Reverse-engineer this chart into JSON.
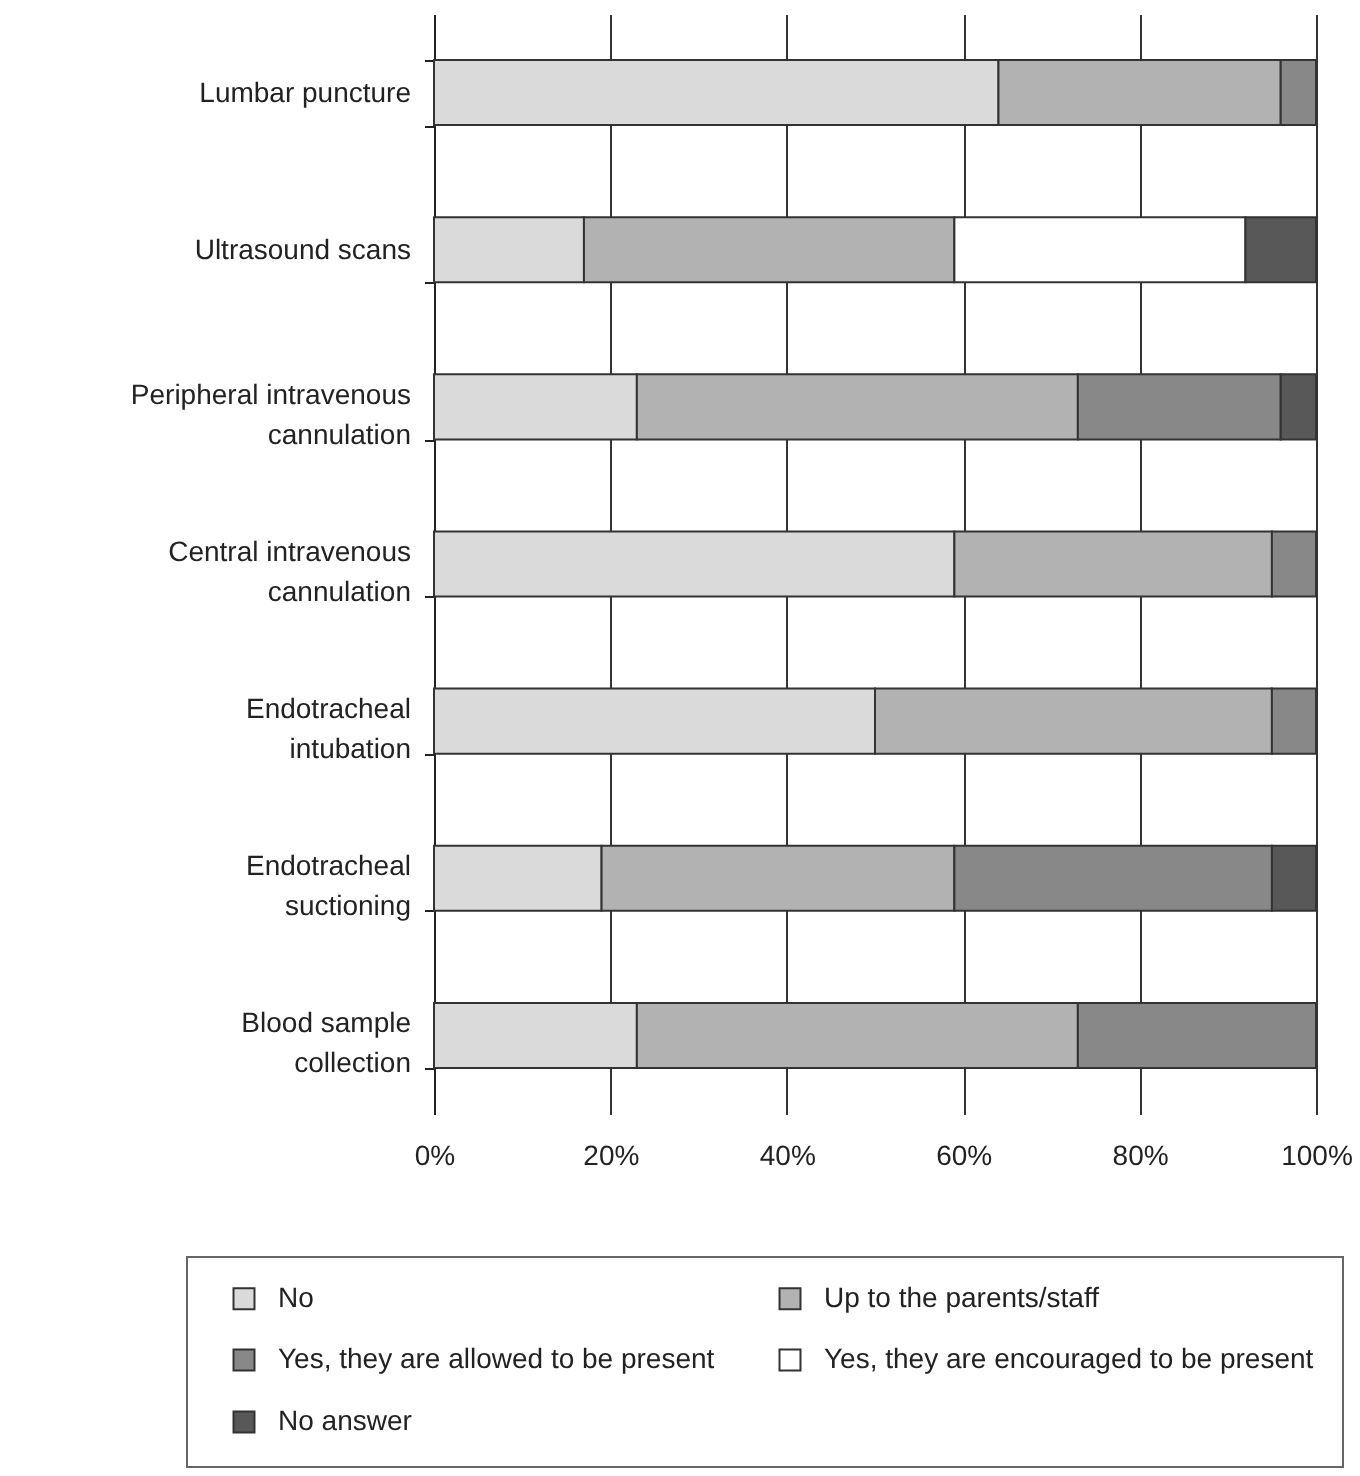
{
  "chart_data": {
    "type": "bar",
    "orientation": "horizontal",
    "stacked": true,
    "categories": [
      "Lumbar puncture",
      "Ultrasound scans",
      "Peripheral intravenous cannulation",
      "Central intravenous cannulation",
      "Endotracheal intubation",
      "Endotracheal suctioning",
      "Blood sample collection"
    ],
    "series": [
      {
        "name": "No",
        "color": "#dadada",
        "values": [
          64,
          17,
          23,
          59,
          50,
          19,
          23
        ]
      },
      {
        "name": "Up to the parents/staff",
        "color": "#b2b2b2",
        "values": [
          32,
          42,
          50,
          36,
          45,
          40,
          50
        ]
      },
      {
        "name": "Yes, they are allowed to be present",
        "color": "#888888",
        "values": [
          4,
          null,
          23,
          5,
          5,
          36,
          27
        ]
      },
      {
        "name": "Yes, they are encouraged to be present",
        "color": "#ffffff",
        "values": [
          null,
          33,
          null,
          null,
          null,
          null,
          null
        ]
      },
      {
        "name": "No answer",
        "color": "#585858",
        "values": [
          null,
          8,
          4,
          null,
          null,
          5,
          null
        ]
      }
    ],
    "xlim": [
      0,
      100
    ],
    "xticks": [
      {
        "value": 0,
        "label": "0%"
      },
      {
        "value": 20,
        "label": "20%"
      },
      {
        "value": 40,
        "label": "40%"
      },
      {
        "value": 60,
        "label": "60%"
      },
      {
        "value": 80,
        "label": "80%"
      },
      {
        "value": 100,
        "label": "100%"
      }
    ],
    "grid": "x",
    "legend": "bottom"
  }
}
